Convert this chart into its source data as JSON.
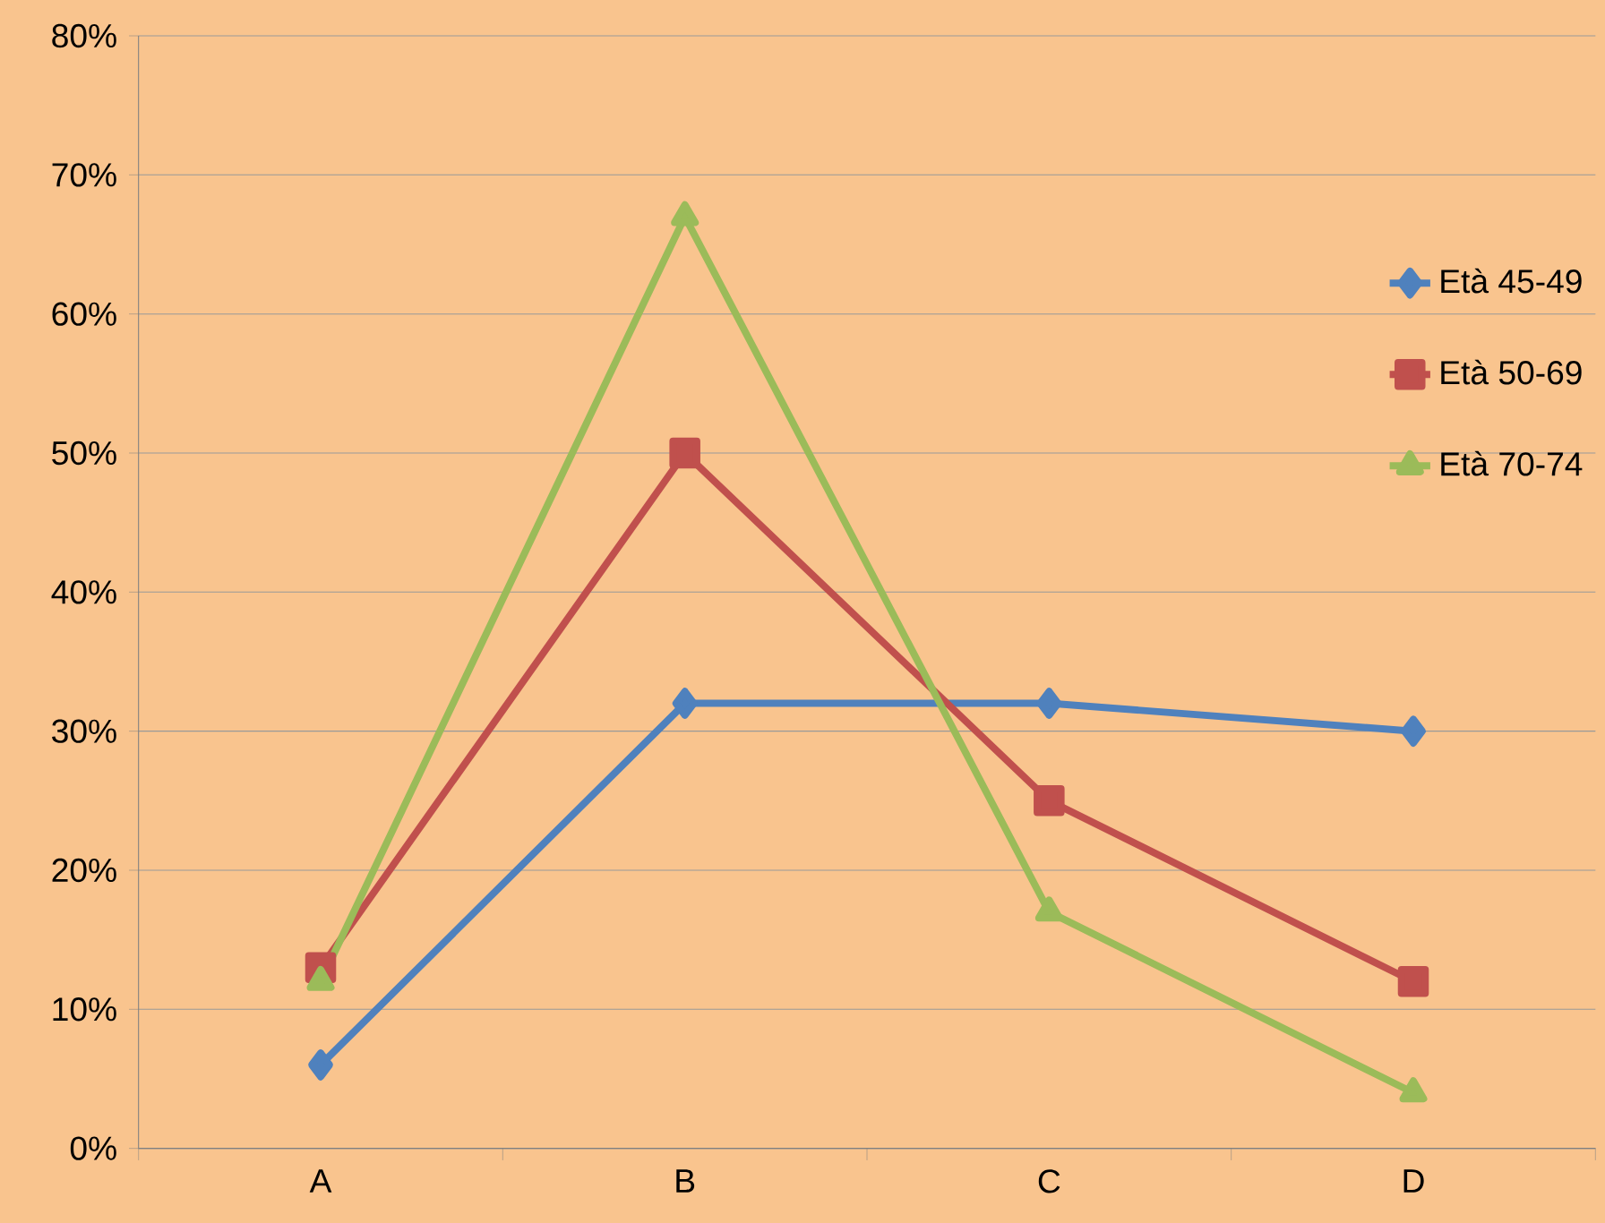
{
  "chart_data": {
    "type": "line",
    "categories": [
      "A",
      "B",
      "C",
      "D"
    ],
    "series": [
      {
        "name": "Età 45-49",
        "color": "#4f81bd",
        "marker": "diamond",
        "values": [
          6,
          32,
          32,
          30
        ]
      },
      {
        "name": "Età 50-69",
        "color": "#c0504d",
        "marker": "square",
        "values": [
          13,
          50,
          25,
          12
        ]
      },
      {
        "name": "Età 70-74",
        "color": "#9bbb59",
        "marker": "triangle",
        "values": [
          12,
          67,
          17,
          4
        ]
      }
    ],
    "ylim": [
      0,
      80
    ],
    "yticks": [
      {
        "value": 0,
        "label": "0%"
      },
      {
        "value": 10,
        "label": "10%"
      },
      {
        "value": 20,
        "label": "20%"
      },
      {
        "value": 30,
        "label": "30%"
      },
      {
        "value": 40,
        "label": "40%"
      },
      {
        "value": 50,
        "label": "50%"
      },
      {
        "value": 60,
        "label": "60%"
      },
      {
        "value": 70,
        "label": "70%"
      },
      {
        "value": 80,
        "label": "80%"
      }
    ],
    "grid": "y",
    "legend": "right",
    "line_style": "solid"
  }
}
